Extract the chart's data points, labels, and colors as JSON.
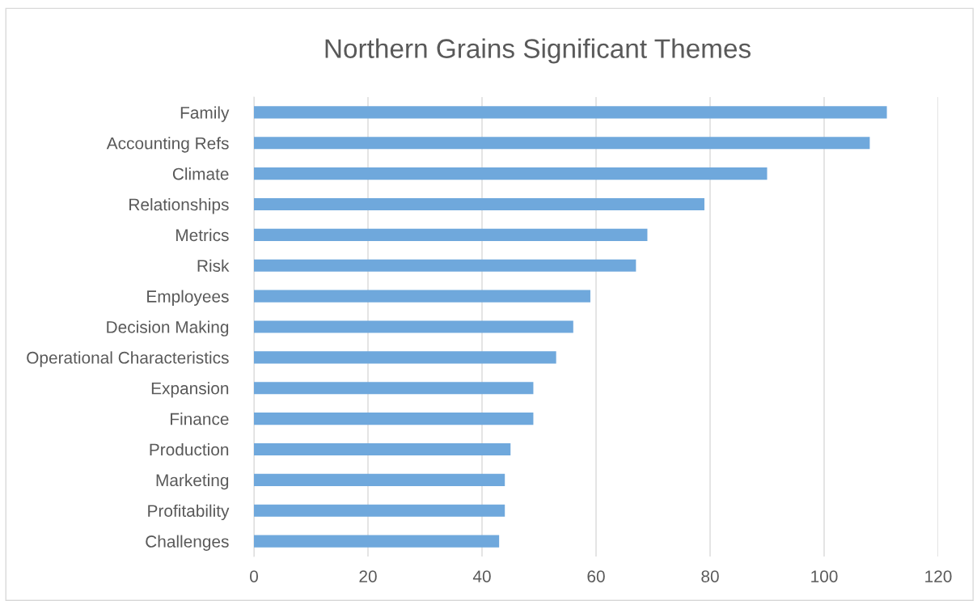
{
  "chart_data": {
    "type": "bar",
    "orientation": "horizontal",
    "title": "Northern Grains Significant Themes",
    "categories": [
      "Family",
      "Accounting Refs",
      "Climate",
      "Relationships",
      "Metrics",
      "Risk",
      "Employees",
      "Decision Making",
      "Operational Characteristics",
      "Expansion",
      "Finance",
      "Production",
      "Marketing",
      "Profitability",
      "Challenges"
    ],
    "values": [
      111,
      108,
      90,
      79,
      69,
      67,
      59,
      56,
      53,
      49,
      49,
      45,
      44,
      44,
      43
    ],
    "color": "#6fa8dc",
    "xlim": [
      0,
      120
    ],
    "xticks": [
      0,
      20,
      40,
      60,
      80,
      100,
      120
    ],
    "grid": "x",
    "legend": false
  }
}
